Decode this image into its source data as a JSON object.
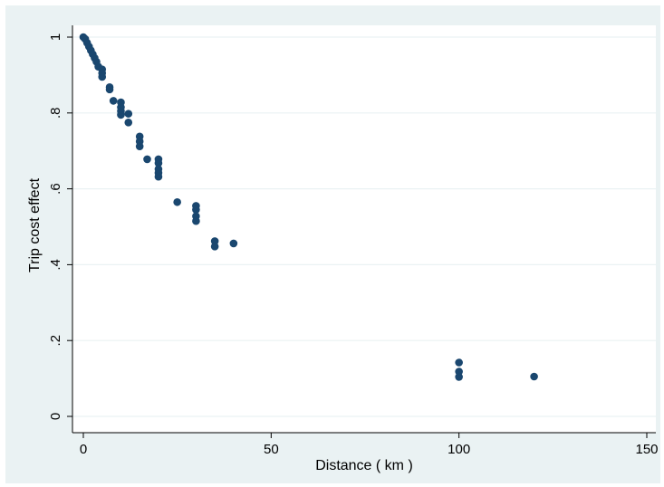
{
  "chart_data": {
    "type": "scatter",
    "xlabel": "Distance ( km )",
    "ylabel": "Trip cost effect",
    "xlim": [
      0,
      150
    ],
    "ylim": [
      0,
      1
    ],
    "x_ticks": [
      "0",
      "50",
      "100",
      "150"
    ],
    "y_ticks": [
      "0",
      ".2",
      ".4",
      ".6",
      ".8",
      "1"
    ],
    "grid": "horizontal",
    "colors": {
      "marker": "#1a476f",
      "plot_region_bg": "#eaf2f3",
      "outer_bg": "#ffffff",
      "gridline": "#ffffff"
    },
    "points": [
      {
        "x": 0,
        "y": 1.0
      },
      {
        "x": 0.5,
        "y": 0.995
      },
      {
        "x": 1,
        "y": 0.985
      },
      {
        "x": 1.5,
        "y": 0.975
      },
      {
        "x": 2,
        "y": 0.965
      },
      {
        "x": 2.5,
        "y": 0.955
      },
      {
        "x": 3,
        "y": 0.945
      },
      {
        "x": 3.5,
        "y": 0.935
      },
      {
        "x": 4,
        "y": 0.922
      },
      {
        "x": 5,
        "y": 0.915
      },
      {
        "x": 5,
        "y": 0.905
      },
      {
        "x": 5,
        "y": 0.895
      },
      {
        "x": 7,
        "y": 0.868
      },
      {
        "x": 7,
        "y": 0.862
      },
      {
        "x": 8,
        "y": 0.832
      },
      {
        "x": 10,
        "y": 0.828
      },
      {
        "x": 10,
        "y": 0.815
      },
      {
        "x": 10,
        "y": 0.805
      },
      {
        "x": 10,
        "y": 0.795
      },
      {
        "x": 12,
        "y": 0.798
      },
      {
        "x": 12,
        "y": 0.775
      },
      {
        "x": 15,
        "y": 0.738
      },
      {
        "x": 15,
        "y": 0.725
      },
      {
        "x": 15,
        "y": 0.712
      },
      {
        "x": 17,
        "y": 0.678
      },
      {
        "x": 20,
        "y": 0.678
      },
      {
        "x": 20,
        "y": 0.668
      },
      {
        "x": 20,
        "y": 0.652
      },
      {
        "x": 20,
        "y": 0.642
      },
      {
        "x": 20,
        "y": 0.632
      },
      {
        "x": 25,
        "y": 0.565
      },
      {
        "x": 30,
        "y": 0.555
      },
      {
        "x": 30,
        "y": 0.545
      },
      {
        "x": 30,
        "y": 0.528
      },
      {
        "x": 30,
        "y": 0.515
      },
      {
        "x": 35,
        "y": 0.462
      },
      {
        "x": 35,
        "y": 0.448
      },
      {
        "x": 40,
        "y": 0.456
      },
      {
        "x": 100,
        "y": 0.142
      },
      {
        "x": 100,
        "y": 0.118
      },
      {
        "x": 100,
        "y": 0.104
      },
      {
        "x": 120,
        "y": 0.105
      }
    ]
  }
}
